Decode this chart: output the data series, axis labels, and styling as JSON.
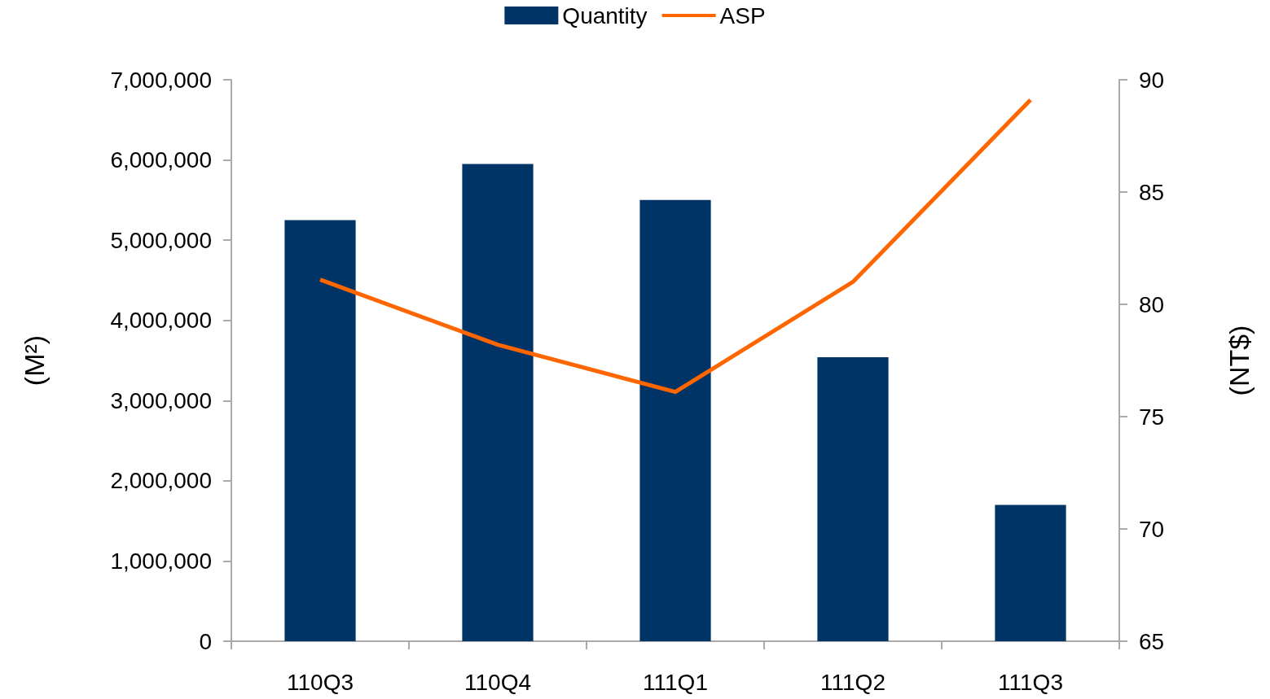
{
  "chart_data": {
    "type": "bar",
    "categories": [
      "110Q3",
      "110Q4",
      "111Q1",
      "111Q2",
      "111Q3"
    ],
    "series": [
      {
        "name": "Quantity",
        "color": "#003366",
        "values": [
          5250000,
          5950000,
          5500000,
          3540000,
          1700000
        ]
      },
      {
        "name": "ASP",
        "type": "line",
        "axis": "y2",
        "color": "#ff6600",
        "values": [
          81.1,
          78.2,
          76.1,
          81.0,
          89.1
        ]
      }
    ],
    "ylabel": "(M²)",
    "y2label": "(NT$)",
    "ylim": [
      0,
      7000000
    ],
    "yticks": [
      0,
      {
        "value": 1000000,
        "label": "1,000,000"
      },
      {
        "value": 2000000,
        "label": "2,000,000"
      },
      {
        "value": 3000000,
        "label": "3,000,000"
      },
      {
        "value": 4000000,
        "label": "4,000,000"
      },
      {
        "value": 5000000,
        "label": "5,000,000"
      },
      {
        "value": 6000000,
        "label": "6,000,000"
      },
      {
        "value": 7000000,
        "label": "7,000,000"
      }
    ],
    "y2lim": [
      65,
      90
    ],
    "y2ticks": [
      65,
      70,
      75,
      80,
      85,
      90
    ],
    "grid": false,
    "legend": "top",
    "marker": "none",
    "line_style": "solid"
  }
}
